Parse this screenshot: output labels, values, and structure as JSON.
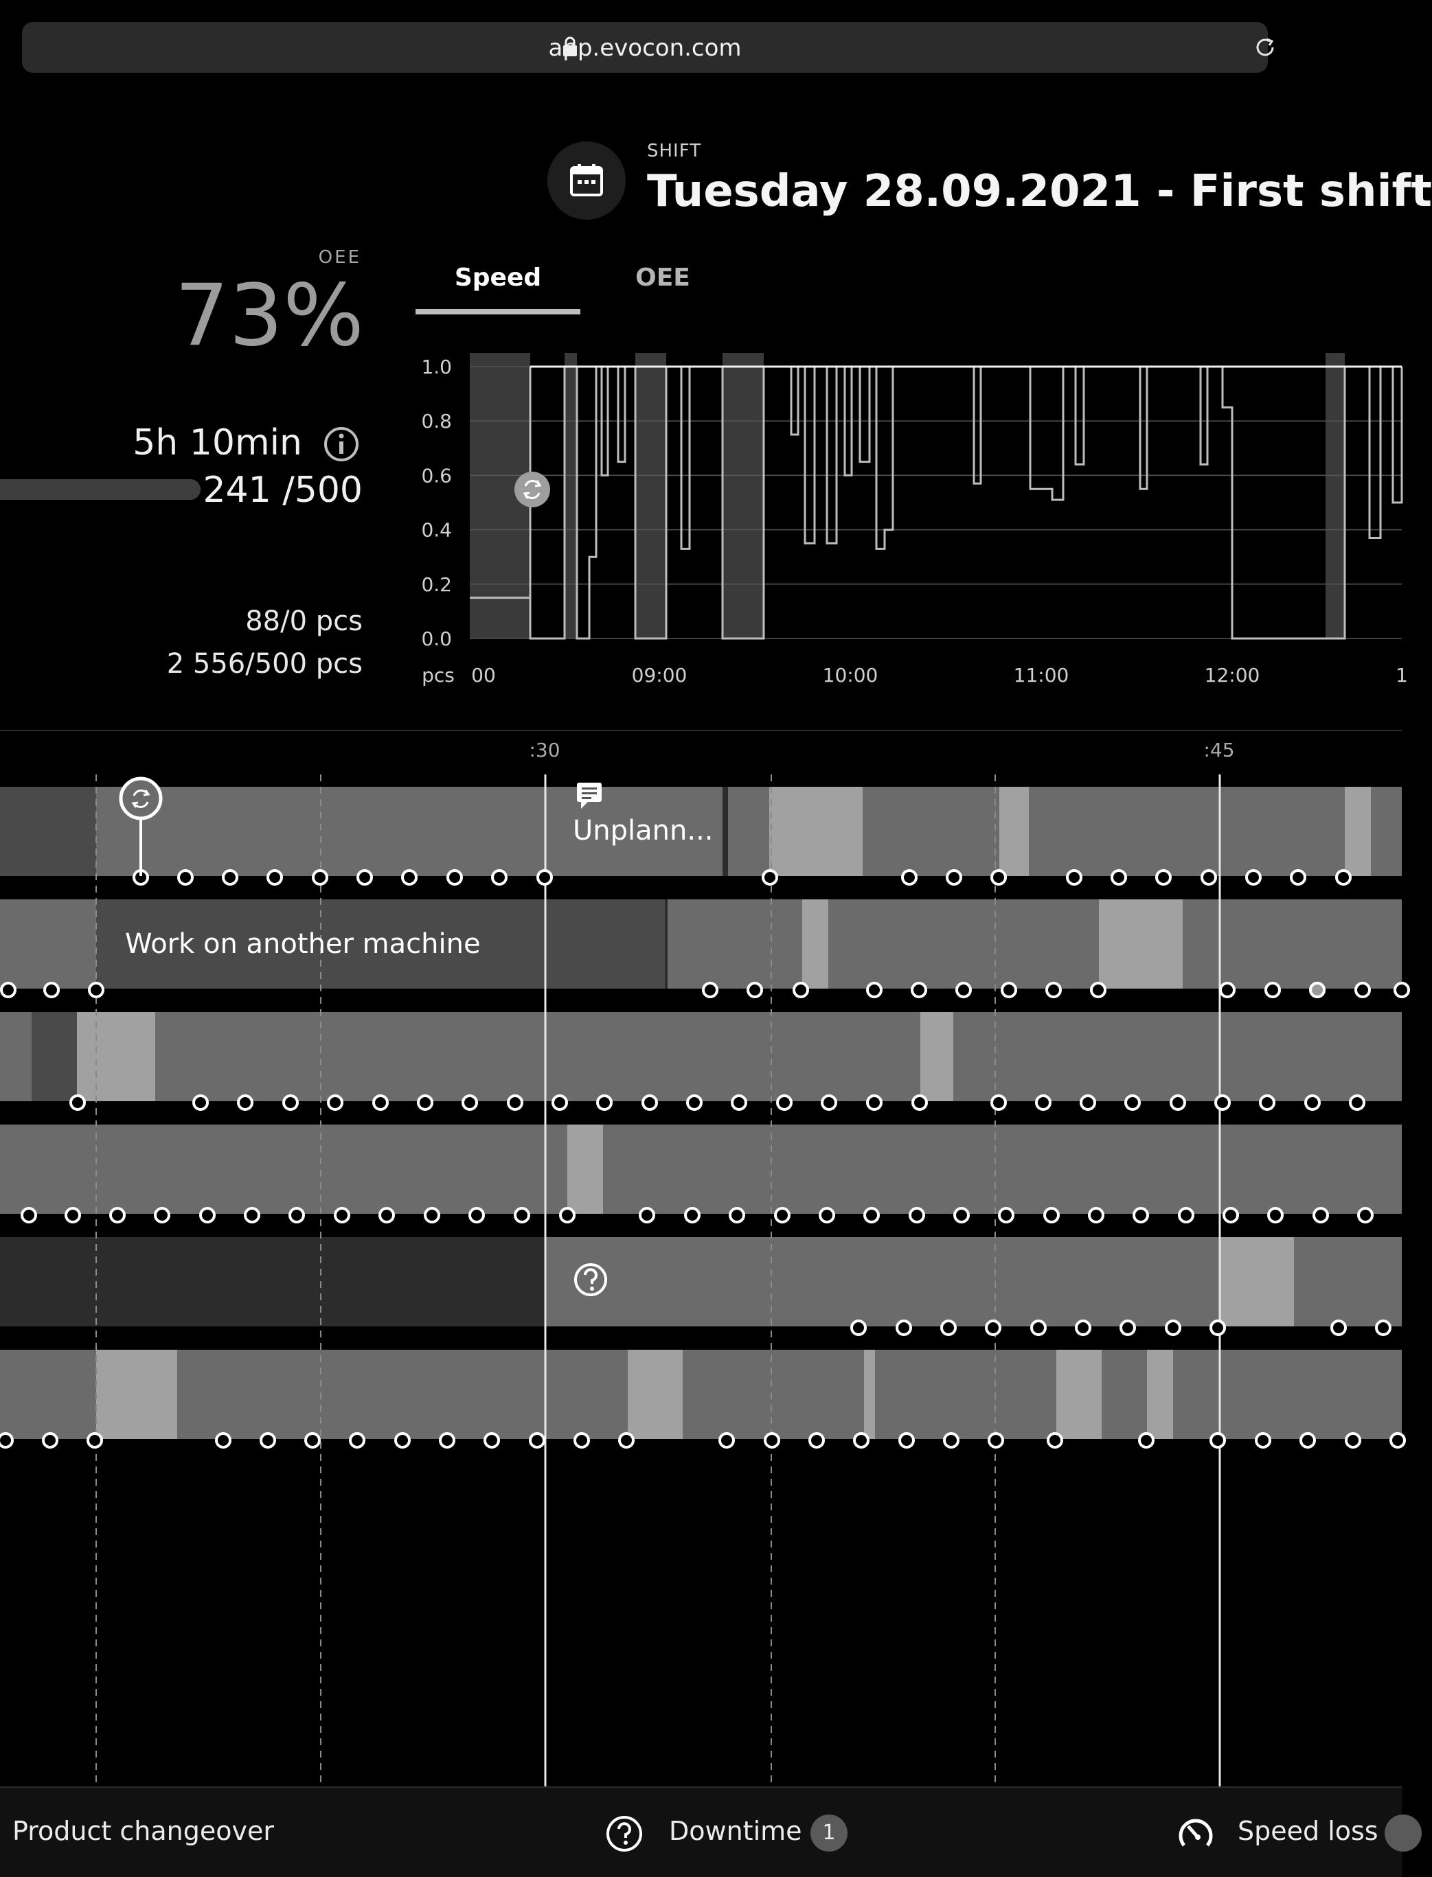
{
  "browser": {
    "url": "app.evocon.com"
  },
  "header": {
    "shift_label": "SHIFT",
    "shift_title": "Tuesday 28.09.2021 - First shift"
  },
  "kpi": {
    "oee_label": "OEE",
    "oee_value": "73%",
    "duration": "5h 10min",
    "count": "241 /500",
    "count_fraction": 0.482,
    "pcs_line1": "88/0 pcs",
    "pcs_line2": "2 556/500 pcs"
  },
  "tabs": [
    {
      "label": "Speed",
      "active": true
    },
    {
      "label": "OEE",
      "active": false
    }
  ],
  "chart_data": {
    "type": "line",
    "y_ticks": [
      "1.0",
      "0.8",
      "0.6",
      "0.4",
      "0.2",
      "0.0"
    ],
    "y_unit": "pcs",
    "ylim": [
      0,
      1
    ],
    "x_ticks": [
      "00",
      "09:00",
      "10:00",
      "11:00",
      "12:00",
      "1"
    ],
    "grid": true
  },
  "timeline": {
    "time_labels": [
      ":30",
      ":45"
    ],
    "labels": {
      "unplanned": "Unplann...",
      "work_other": "Work on another machine"
    }
  },
  "legend": {
    "product_changeover": "Product changeover",
    "downtime": "Downtime",
    "downtime_count": "1",
    "speed_loss": "Speed loss"
  },
  "colors": {
    "background": "#000000",
    "bar_mid": "#6b6b6b",
    "bar_light": "#a1a1a1",
    "bar_dark": "#2c2c2c"
  },
  "icons": [
    "lock-icon",
    "reload-icon",
    "calendar-icon",
    "info-icon",
    "changeover-icon",
    "comment-icon",
    "help-icon",
    "speed-gauge-icon"
  ]
}
